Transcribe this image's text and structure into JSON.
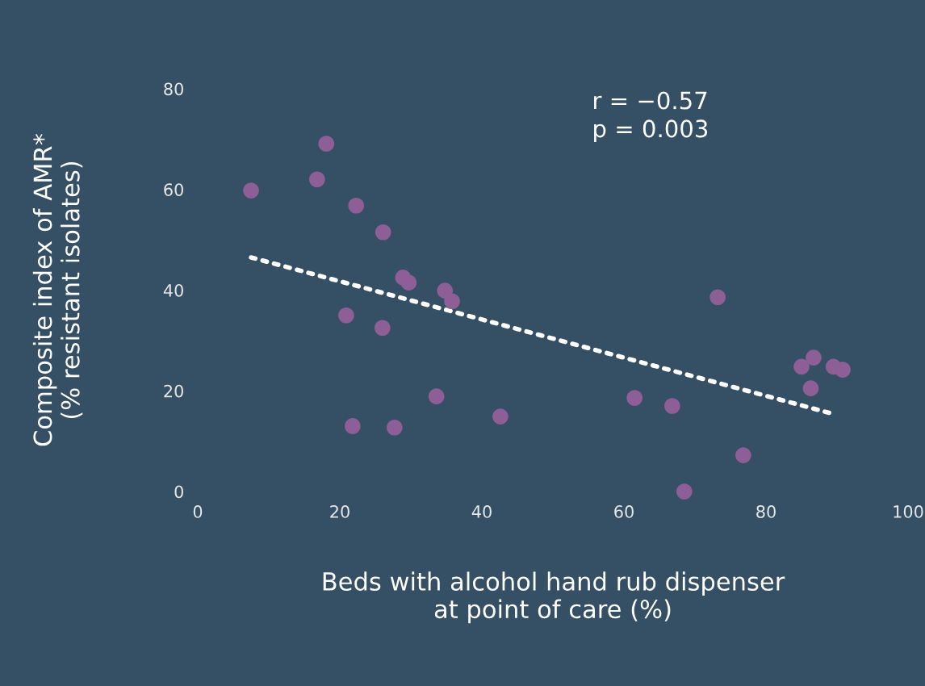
{
  "chart_data": {
    "type": "scatter",
    "xlabel": "Beds with alcohol hand rub dispenser\nat point of care (%)",
    "ylabel": "Composite index of AMR*\n(% resistant isolates)",
    "annotations": [
      "r = −0.57\np = 0.003"
    ],
    "xlim": [
      0,
      100
    ],
    "xticks": [
      0,
      20,
      40,
      60,
      80,
      100
    ],
    "ylim": [
      0,
      80
    ],
    "yticks": [
      0,
      20,
      40,
      60,
      80
    ],
    "grid": false,
    "marker": "circle",
    "series": [
      {
        "color": "#8e5f96",
        "x": [
          7.5,
          16.8,
          18.1,
          22.3,
          26.1,
          20.9,
          26.0,
          28.9,
          29.7,
          34.8,
          35.8,
          21.8,
          27.7,
          33.6,
          42.6,
          61.5,
          66.8,
          68.5,
          73.2,
          76.8,
          85.0,
          86.7,
          86.3,
          89.5,
          90.8
        ],
        "values": [
          59.8,
          62.0,
          69.1,
          56.8,
          51.5,
          35.0,
          32.5,
          42.5,
          41.5,
          39.9,
          37.8,
          13.0,
          12.7,
          18.9,
          14.9,
          18.6,
          17.0,
          0,
          38.6,
          7.2,
          24.8,
          26.6,
          20.5,
          24.8,
          24.2
        ]
      },
      {
        "type": "line",
        "color": "#ffffff",
        "line_style": "dotted",
        "marker": "none",
        "x": [
          7.5,
          89.5
        ],
        "values": [
          46.5,
          15.4
        ]
      }
    ]
  }
}
